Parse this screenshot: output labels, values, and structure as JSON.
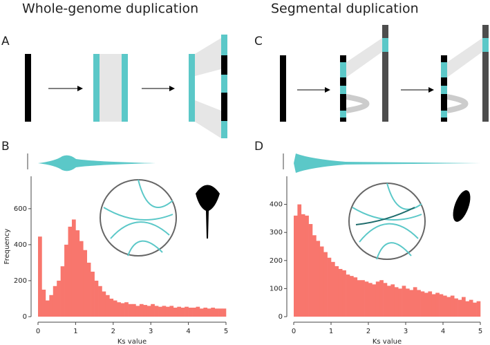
{
  "headings": [
    "Whole-genome duplication",
    "Segmental duplication"
  ],
  "diagram_labels": [
    "A",
    "C"
  ],
  "chart_data": [
    {
      "type": "histogram",
      "panel": "B",
      "color": "#f8766d",
      "bins": [
        0,
        0.1,
        0.2,
        0.3,
        0.4,
        0.5,
        0.6,
        0.7,
        0.8,
        0.9,
        1,
        1.1,
        1.2,
        1.3,
        1.4,
        1.5,
        1.6,
        1.7,
        1.8,
        1.9,
        2,
        2.1,
        2.2,
        2.3,
        2.4,
        2.5,
        2.6,
        2.7,
        2.8,
        2.9,
        3,
        3.1,
        3.2,
        3.3,
        3.4,
        3.5,
        3.6,
        3.7,
        3.8,
        3.9,
        4,
        4.1,
        4.2,
        4.3,
        4.4,
        4.5,
        4.6,
        4.7,
        4.8,
        4.9,
        5
      ],
      "values": [
        445,
        150,
        90,
        120,
        170,
        200,
        280,
        400,
        500,
        540,
        480,
        420,
        370,
        300,
        250,
        200,
        170,
        140,
        120,
        100,
        90,
        80,
        75,
        80,
        70,
        70,
        60,
        70,
        65,
        60,
        70,
        60,
        55,
        60,
        55,
        60,
        50,
        55,
        50,
        55,
        50,
        50,
        55,
        45,
        50,
        45,
        50,
        45,
        45,
        45
      ],
      "xlim": [
        0,
        5
      ],
      "xticks": [
        0,
        1,
        2,
        3,
        4,
        5
      ],
      "ylim": [
        0,
        780
      ],
      "yticks": [
        0,
        200,
        400,
        600
      ],
      "xlabel": "Ks value",
      "ylabel": "Frequency"
    },
    {
      "type": "histogram",
      "panel": "D",
      "color": "#f8766d",
      "bins": [
        0,
        0.1,
        0.2,
        0.3,
        0.4,
        0.5,
        0.6,
        0.7,
        0.8,
        0.9,
        1,
        1.1,
        1.2,
        1.3,
        1.4,
        1.5,
        1.6,
        1.7,
        1.8,
        1.9,
        2,
        2.1,
        2.2,
        2.3,
        2.4,
        2.5,
        2.6,
        2.7,
        2.8,
        2.9,
        3,
        3.1,
        3.2,
        3.3,
        3.4,
        3.5,
        3.6,
        3.7,
        3.8,
        3.9,
        4,
        4.1,
        4.2,
        4.3,
        4.4,
        4.5,
        4.6,
        4.7,
        4.8,
        4.9,
        5
      ],
      "values": [
        360,
        400,
        365,
        360,
        330,
        290,
        270,
        250,
        230,
        210,
        195,
        180,
        170,
        165,
        150,
        145,
        140,
        130,
        130,
        125,
        120,
        115,
        125,
        130,
        120,
        110,
        115,
        105,
        100,
        110,
        100,
        95,
        105,
        95,
        90,
        85,
        90,
        80,
        85,
        80,
        75,
        70,
        75,
        65,
        60,
        70,
        55,
        60,
        50,
        55
      ],
      "xlim": [
        0,
        5
      ],
      "xticks": [
        0,
        1,
        2,
        3,
        4,
        5
      ],
      "ylim": [
        0,
        500
      ],
      "yticks": [
        0,
        100,
        200,
        300,
        400
      ],
      "xlabel": "Ks value"
    }
  ]
}
